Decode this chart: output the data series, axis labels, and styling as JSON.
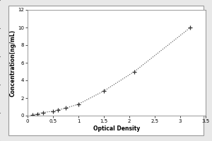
{
  "x": [
    0.1,
    0.2,
    0.3,
    0.5,
    0.6,
    0.75,
    1.0,
    1.5,
    2.1,
    3.2
  ],
  "y": [
    0.1,
    0.2,
    0.35,
    0.5,
    0.65,
    0.85,
    1.3,
    2.8,
    5.0,
    10.0
  ],
  "xlabel": "Optical Density",
  "ylabel": "Concentration(ng/mL)",
  "xlim": [
    0,
    3.5
  ],
  "ylim": [
    0,
    12
  ],
  "xticks": [
    0,
    0.5,
    1,
    1.5,
    2,
    2.5,
    3,
    3.5
  ],
  "yticks": [
    0,
    2,
    4,
    6,
    8,
    10,
    12
  ],
  "line_color": "#444444",
  "marker_style": "+",
  "marker_color": "#333333",
  "marker_size": 4,
  "line_width": 0.8,
  "marker_edge_width": 0.9,
  "background_color": "#ffffff",
  "outer_bg": "#e8e8e8",
  "label_fontsize": 5.5,
  "tick_fontsize": 5,
  "xlabel_fontweight": "bold",
  "ylabel_fontweight": "bold"
}
